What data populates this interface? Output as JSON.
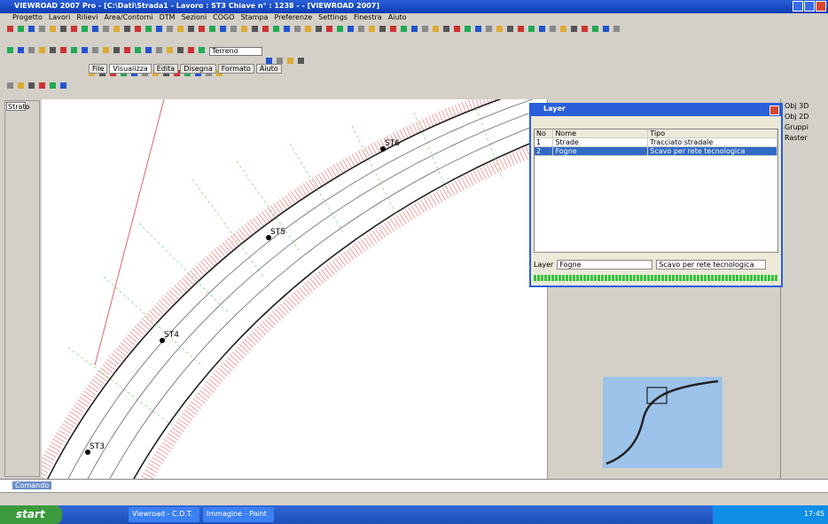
{
  "window": {
    "title": "VIEWROAD 2007 Pro - [C:\\Dati\\Strada1 - Lavoro : ST3 Chiave n° : 1238 - - [VIEWROAD 2007]",
    "menu": [
      "Progetto",
      "Lavori",
      "Rilievi",
      "Area/Contorni",
      "DTM",
      "Sezioni",
      "COGO",
      "Stampa",
      "Preferenze",
      "Settings",
      "Finestra",
      "Aiuto"
    ],
    "layer_combo": "Terreno",
    "tabs": [
      "File",
      "Visualizza",
      "Edita",
      "Disegna",
      "Formato",
      "Aiuto"
    ]
  },
  "left_panel": {
    "title": "Strato"
  },
  "drawing": {
    "stations": [
      "ST3",
      "ST4",
      "ST5",
      "ST6"
    ]
  },
  "layers_dialog": {
    "title": "Layer",
    "headers": [
      "No",
      "Nome",
      "Tipo"
    ],
    "rows": [
      [
        "1",
        "Strade",
        "Tracciato stradale"
      ],
      [
        "2",
        "Fogne",
        "Scavo per rete tecnologica"
      ]
    ],
    "edit_label": "Layer",
    "edit_name": "Fogne",
    "edit_type": "Scavo per rete tecnologica"
  },
  "right_panel": {
    "items": [
      "Obj 3D",
      "Obj 2D",
      "Gruppi",
      "Raster"
    ]
  },
  "command_tab": "Comando",
  "taskbar": {
    "start": "start",
    "tasks": [
      "Viewroad - C.D.T.",
      "Immagine - Paint"
    ],
    "clock": "17:45"
  }
}
